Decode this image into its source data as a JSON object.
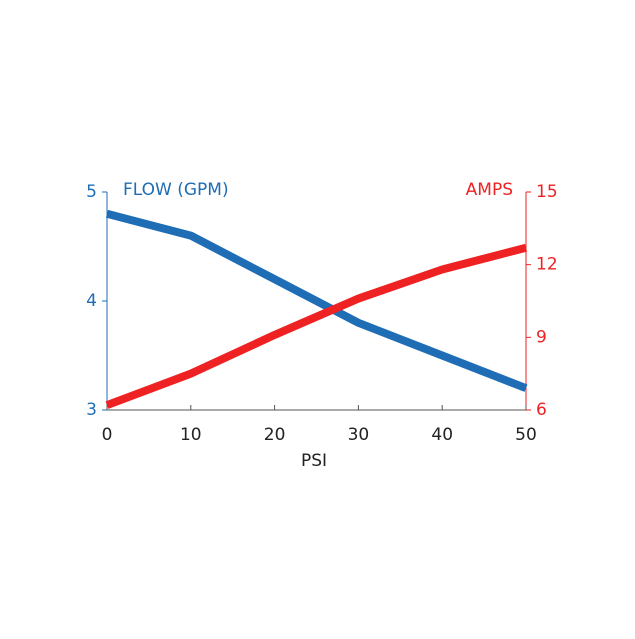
{
  "chart_data": {
    "type": "line",
    "x_label": "PSI",
    "y_label": "FLOW (GPM)",
    "y2_label": "AMPS",
    "x": [
      0,
      10,
      20,
      30,
      40,
      50
    ],
    "xlim": [
      0,
      50
    ],
    "xticks": [
      0,
      10,
      20,
      30,
      40,
      50
    ],
    "ylim": [
      3,
      5
    ],
    "yticks": [
      3,
      4,
      5
    ],
    "y2lim": [
      6,
      15
    ],
    "y2ticks": [
      6,
      9,
      12,
      15
    ],
    "series": [
      {
        "name": "FLOW (GPM)",
        "color": "#1f6db5",
        "values": [
          4.8,
          4.6,
          4.2,
          3.8,
          3.5,
          3.2
        ]
      },
      {
        "name": "AMPS",
        "color": "#ee2222",
        "axis": "y2",
        "values": [
          6.2,
          7.5,
          9.1,
          10.6,
          11.8,
          12.7
        ]
      }
    ]
  }
}
